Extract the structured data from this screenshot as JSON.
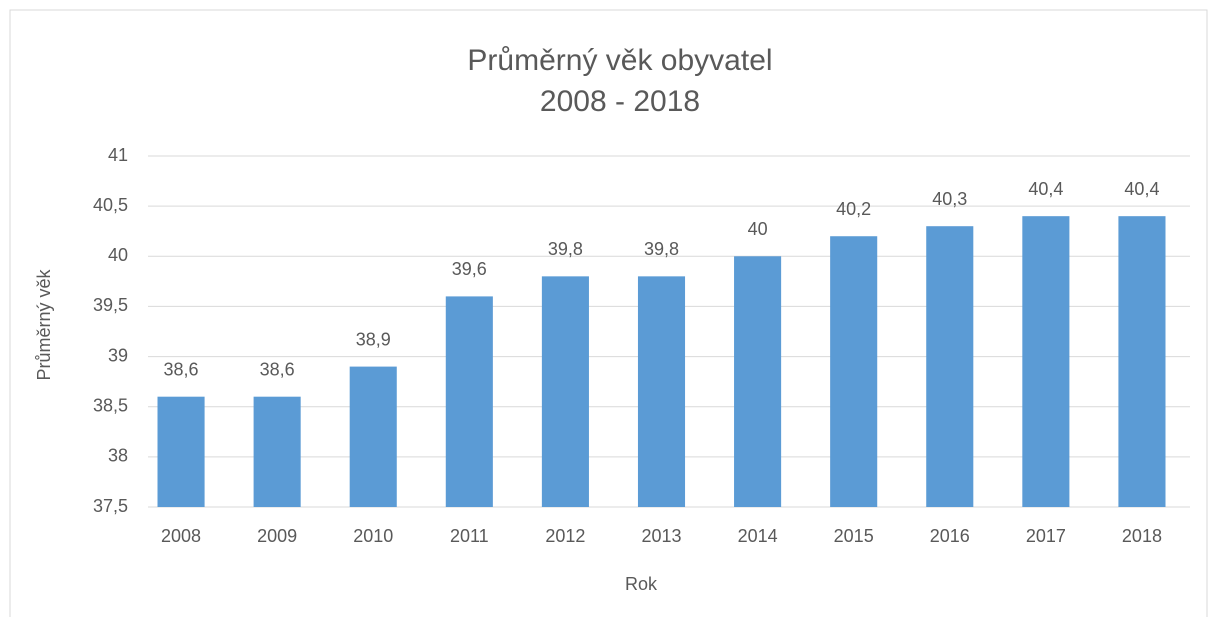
{
  "chart_data": {
    "type": "bar",
    "title": "Průměrný věk obyvatel",
    "subtitle": "2008 - 2018",
    "x_label": "Rok",
    "y_label": "Průměrný věk",
    "categories": [
      "2008",
      "2009",
      "2010",
      "2011",
      "2012",
      "2013",
      "2014",
      "2015",
      "2016",
      "2017",
      "2018"
    ],
    "values": [
      38.6,
      38.6,
      38.9,
      39.6,
      39.8,
      39.8,
      40,
      40.2,
      40.3,
      40.4,
      40.4
    ],
    "value_labels": [
      "38,6",
      "38,6",
      "38,9",
      "39,6",
      "39,8",
      "39,8",
      "40",
      "40,2",
      "40,3",
      "40,4",
      "40,4"
    ],
    "color": "#5b9bd5",
    "ylim": [
      37.5,
      41
    ],
    "yticks": [
      {
        "value": 37.5,
        "label": "37,5"
      },
      38,
      {
        "value": 38.5,
        "label": "38,5"
      },
      39,
      {
        "value": 39.5,
        "label": "39,5"
      },
      40,
      {
        "value": 40.5,
        "label": "40,5"
      },
      41
    ],
    "grid": true
  }
}
